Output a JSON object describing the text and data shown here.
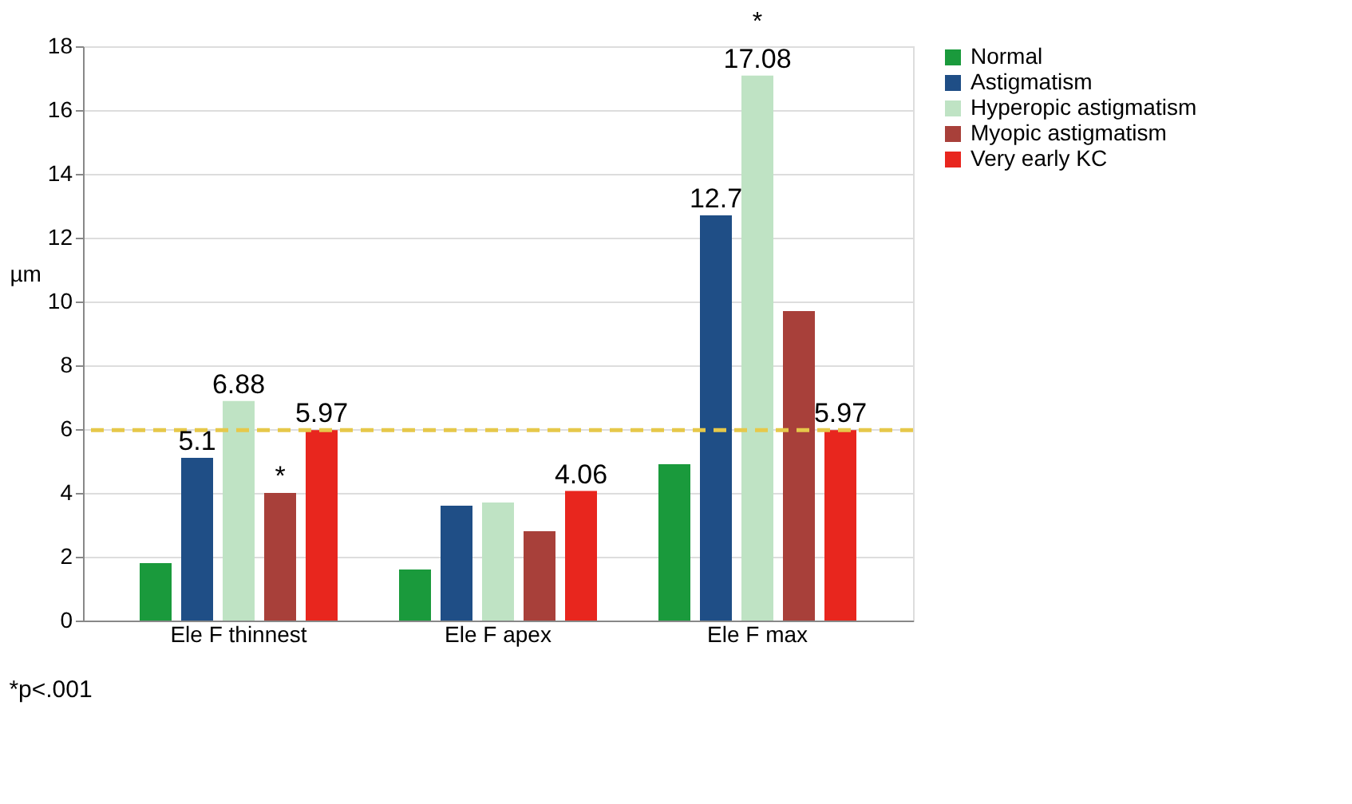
{
  "chart_data": {
    "type": "bar",
    "categories": [
      "Ele F thinnest",
      "Ele F apex",
      "Ele F max"
    ],
    "ylabel": "µm",
    "ylim": [
      0,
      18
    ],
    "yticks": [
      0,
      2,
      4,
      6,
      8,
      10,
      12,
      14,
      16,
      18
    ],
    "grid": "y",
    "legend": "right",
    "series": [
      {
        "name": "Normal",
        "color": "#1a9a3c",
        "values": [
          1.8,
          1.6,
          4.9
        ]
      },
      {
        "name": "Astigmatism",
        "color": "#1f4e86",
        "values": [
          5.1,
          3.6,
          12.7
        ],
        "value_labels": [
          "5.1",
          null,
          "12.7"
        ]
      },
      {
        "name": "Hyperopic astigmatism",
        "color": "#bfe3c4",
        "values": [
          6.88,
          3.7,
          17.08
        ],
        "value_labels": [
          "6.88",
          null,
          "17.08"
        ]
      },
      {
        "name": "Myopic astigmatism",
        "color": "#a8403a",
        "values": [
          4.0,
          2.8,
          9.7
        ],
        "value_labels": [
          "*",
          null,
          null
        ]
      },
      {
        "name": "Very early KC",
        "color": "#e8261e",
        "values": [
          5.97,
          4.06,
          5.97
        ],
        "value_labels": [
          "5.97",
          "4.06",
          "5.97"
        ]
      }
    ],
    "ref_lines": [
      {
        "axis": "y",
        "value": 5.97,
        "color": "#e6c84a",
        "line_style": "dashed"
      }
    ],
    "annotations": [
      {
        "text": "*",
        "x": "Ele F max",
        "y": 17.08
      },
      "*p<.001"
    ]
  }
}
